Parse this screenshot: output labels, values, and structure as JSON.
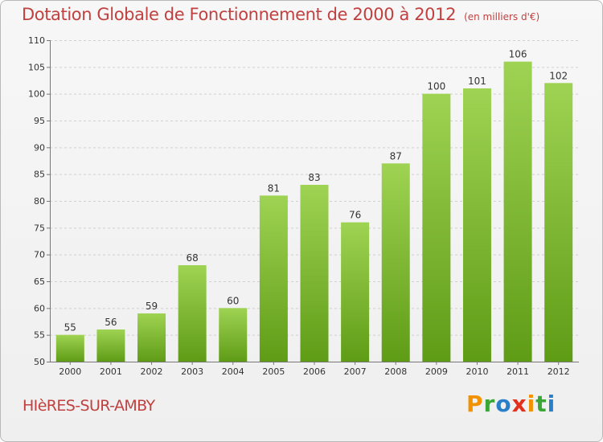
{
  "title": "Dotation Globale de Fonctionnement de 2000 à 2012",
  "unit": "(en milliers d'€)",
  "commune": "HIèRES-SUR-AMBY",
  "brand": {
    "letters": [
      "P",
      "r",
      "o",
      "x",
      "i",
      "t",
      "i"
    ],
    "colors": [
      "#f39200",
      "#3aa635",
      "#2a7fc9",
      "#e3301c",
      "#f39200",
      "#3aa635",
      "#2a7fc9"
    ]
  },
  "colors": {
    "bar_top": "#9fd353",
    "bar_bottom": "#5f9c16",
    "title": "#c0413f"
  },
  "chart_data": {
    "type": "bar",
    "categories": [
      "2000",
      "2001",
      "2002",
      "2003",
      "2004",
      "2005",
      "2006",
      "2007",
      "2008",
      "2009",
      "2010",
      "2011",
      "2012"
    ],
    "values": [
      55,
      56,
      59,
      68,
      60,
      81,
      83,
      76,
      87,
      100,
      101,
      106,
      102
    ],
    "ylim": [
      50,
      110
    ],
    "yticks": [
      50,
      55,
      60,
      65,
      70,
      75,
      80,
      85,
      90,
      95,
      100,
      105,
      110
    ],
    "grid": true
  }
}
